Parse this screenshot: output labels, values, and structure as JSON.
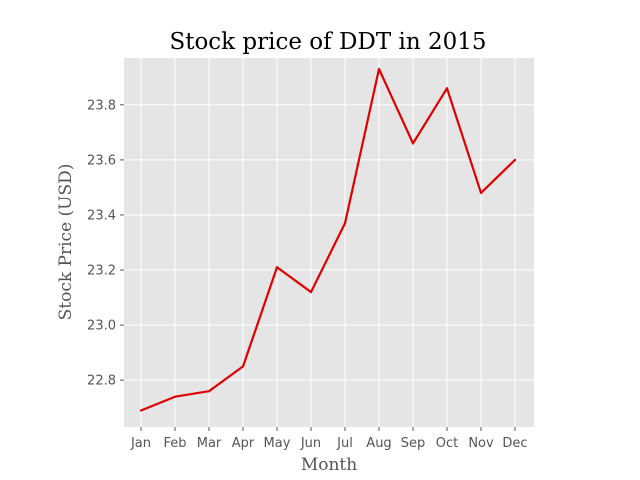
{
  "chart_data": {
    "type": "line",
    "title": "Stock price of DDT in 2015",
    "xlabel": "Month",
    "ylabel": "Stock Price (USD)",
    "categories": [
      "Jan",
      "Feb",
      "Mar",
      "Apr",
      "May",
      "Jun",
      "Jul",
      "Aug",
      "Sep",
      "Oct",
      "Nov",
      "Dec"
    ],
    "series": [
      {
        "values": [
          22.69,
          22.74,
          22.76,
          22.85,
          23.21,
          23.12,
          23.37,
          23.93,
          23.66,
          23.86,
          23.48,
          23.6
        ],
        "color": "#e00000"
      }
    ],
    "ylim": [
      22.63,
      23.97
    ],
    "yticks": [
      "22.8",
      "23.0",
      "23.2",
      "23.4",
      "23.6",
      "23.8"
    ],
    "grid": true,
    "background": "#e5e5e5",
    "gridColor": "#ffffff"
  }
}
